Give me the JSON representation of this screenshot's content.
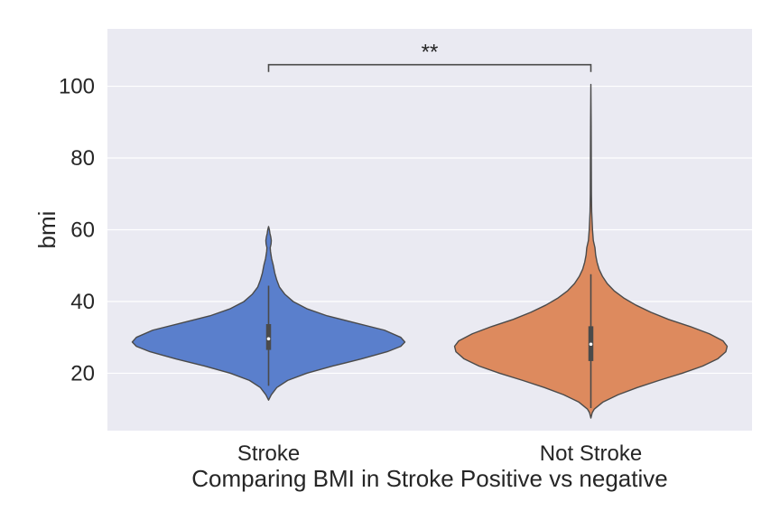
{
  "chart_data": {
    "type": "violin",
    "xlabel": "Comparing BMI in Stroke Positive vs negative",
    "ylabel": "bmi",
    "ylim": [
      4,
      116
    ],
    "yticks": [
      20,
      40,
      60,
      80,
      100
    ],
    "grid": true,
    "background_color": "#eaeaf2",
    "categories": [
      "Stroke",
      "Not Stroke"
    ],
    "violins": [
      {
        "category": "Stroke",
        "color": "#5a7fcc",
        "min": 12.5,
        "q1": 26.5,
        "median": 29.6,
        "q3": 33.7,
        "whisker_low": 16.5,
        "whisker_high": 44.4,
        "max": 60.9,
        "density_profile": [
          [
            12.5,
            0.0
          ],
          [
            14,
            0.02
          ],
          [
            16,
            0.06
          ],
          [
            18,
            0.14
          ],
          [
            20,
            0.28
          ],
          [
            22,
            0.47
          ],
          [
            24,
            0.68
          ],
          [
            26,
            0.87
          ],
          [
            27.5,
            0.97
          ],
          [
            28.7,
            1.0
          ],
          [
            30,
            0.97
          ],
          [
            32,
            0.85
          ],
          [
            34,
            0.64
          ],
          [
            36,
            0.43
          ],
          [
            38,
            0.28
          ],
          [
            40,
            0.18
          ],
          [
            42,
            0.12
          ],
          [
            44,
            0.08
          ],
          [
            46,
            0.06
          ],
          [
            48,
            0.045
          ],
          [
            50,
            0.035
          ],
          [
            52,
            0.022
          ],
          [
            54,
            0.014
          ],
          [
            55,
            0.012
          ],
          [
            56,
            0.018
          ],
          [
            57,
            0.02
          ],
          [
            58,
            0.016
          ],
          [
            59,
            0.01
          ],
          [
            60,
            0.006
          ],
          [
            60.9,
            0.0
          ]
        ]
      },
      {
        "category": "Not Stroke",
        "color": "#dd8a5e",
        "min": 7.5,
        "q1": 23.4,
        "median": 28.1,
        "q3": 33.1,
        "whisker_low": 10.3,
        "whisker_high": 47.6,
        "max": 100.5,
        "density_profile": [
          [
            7.5,
            0.0
          ],
          [
            9,
            0.01
          ],
          [
            10,
            0.025
          ],
          [
            12,
            0.09
          ],
          [
            14,
            0.2
          ],
          [
            16,
            0.34
          ],
          [
            18,
            0.5
          ],
          [
            20,
            0.67
          ],
          [
            22,
            0.82
          ],
          [
            24,
            0.93
          ],
          [
            26,
            0.99
          ],
          [
            27.5,
            1.0
          ],
          [
            29,
            0.97
          ],
          [
            31,
            0.87
          ],
          [
            33,
            0.73
          ],
          [
            35,
            0.57
          ],
          [
            37,
            0.44
          ],
          [
            39,
            0.33
          ],
          [
            41,
            0.24
          ],
          [
            43,
            0.17
          ],
          [
            45,
            0.12
          ],
          [
            47,
            0.085
          ],
          [
            49,
            0.06
          ],
          [
            51,
            0.045
          ],
          [
            53,
            0.035
          ],
          [
            55,
            0.03
          ],
          [
            57,
            0.018
          ],
          [
            60,
            0.012
          ],
          [
            65,
            0.006
          ],
          [
            70,
            0.004
          ],
          [
            80,
            0.003
          ],
          [
            90,
            0.002
          ],
          [
            100.5,
            0.0
          ]
        ]
      }
    ],
    "annotations": [
      {
        "text": "**",
        "between": [
          "Stroke",
          "Not Stroke"
        ],
        "y": 106
      }
    ]
  }
}
